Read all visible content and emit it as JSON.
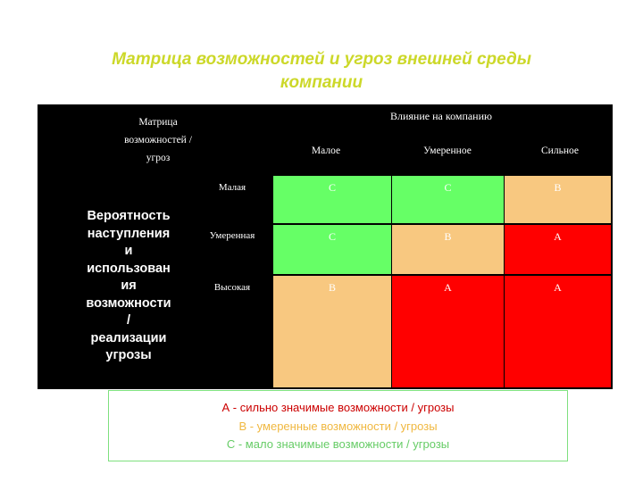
{
  "title": [
    "Матрица возможностей и угроз внешней среды",
    "компании"
  ],
  "colors": {
    "title": "#ccd829",
    "strong": "#ff0000",
    "moderate": "#f8c880",
    "weak": "#66ff66",
    "background": "#000000"
  },
  "matrix": {
    "corner_label": [
      "Матрица",
      "возможностей /",
      "угроз"
    ],
    "impact_label": "Влияние на компанию",
    "impact_levels": [
      "Малое",
      "Умеренное",
      "Сильное"
    ],
    "probability_label": [
      "Вероятность",
      "наступления",
      "и",
      "использован",
      "ия",
      "возможности",
      "/",
      "реализации",
      "угрозы"
    ],
    "probability_levels": [
      "Малая",
      "Умеренная",
      "Высокая"
    ],
    "cells": [
      [
        {
          "value": "C",
          "color": "#66ff66"
        },
        {
          "value": "C",
          "color": "#66ff66"
        },
        {
          "value": "B",
          "color": "#f8c880"
        }
      ],
      [
        {
          "value": "C",
          "color": "#66ff66"
        },
        {
          "value": "B",
          "color": "#f8c880"
        },
        {
          "value": "A",
          "color": "#ff0000"
        }
      ],
      [
        {
          "value": "B",
          "color": "#f8c880"
        },
        {
          "value": "A",
          "color": "#ff0000"
        },
        {
          "value": "A",
          "color": "#ff0000"
        }
      ]
    ]
  },
  "legend": [
    {
      "text": "А - сильно значимые возможности / угрозы",
      "color": "#cc0000"
    },
    {
      "text": "В - умеренные возможности / угрозы",
      "color": "#f0b840"
    },
    {
      "text": "С - мало значимые возможности / угрозы",
      "color": "#66cc66"
    }
  ]
}
